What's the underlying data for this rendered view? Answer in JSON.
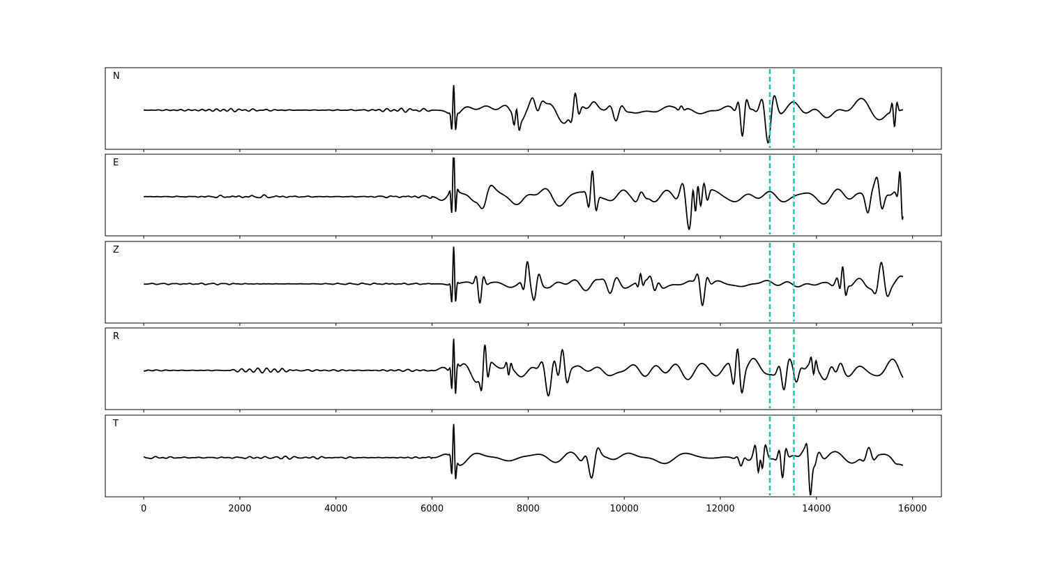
{
  "chart_data": {
    "type": "line",
    "panels": [
      {
        "label": "N",
        "amp": 0.85,
        "onset_boost": 1.0,
        "seed": 11
      },
      {
        "label": "E",
        "amp": 0.85,
        "onset_boost": 1.6,
        "seed": 23
      },
      {
        "label": "Z",
        "amp": 0.55,
        "onset_boost": 1.9,
        "seed": 37
      },
      {
        "label": "R",
        "amp": 0.75,
        "onset_boost": 1.5,
        "seed": 41
      },
      {
        "label": "T",
        "amp": 0.9,
        "onset_boost": 1.1,
        "seed": 53
      }
    ],
    "x_range": [
      0,
      15800
    ],
    "xlim": [
      -800,
      16600
    ],
    "ylim": [
      -1,
      1
    ],
    "noise_end_sample": 6000,
    "signal_onset_sample": 6350,
    "markers": {
      "color": "#1ec6b4",
      "style": "dashed",
      "x": [
        13030,
        13530
      ]
    },
    "x_ticks": [
      0,
      2000,
      4000,
      6000,
      8000,
      10000,
      12000,
      14000,
      16000
    ],
    "x_tick_labels": [
      "0",
      "2000",
      "4000",
      "6000",
      "8000",
      "10000",
      "12000",
      "14000",
      "16000"
    ],
    "line_color": "#000000",
    "grid": false
  }
}
